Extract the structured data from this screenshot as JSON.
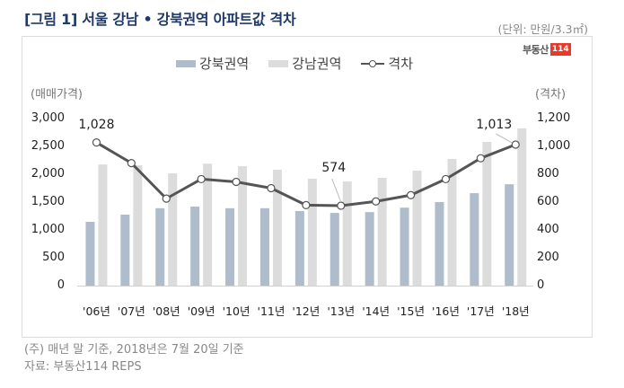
{
  "header": {
    "title": "[그림 1] 서울 강남 • 강북권역 아파트값 격차",
    "unit": "(단위: 만원/3.3㎡)"
  },
  "logo": {
    "text": "부동산",
    "badge": "114",
    "badge_color": "#e8392a"
  },
  "legend": [
    {
      "label": "강북권역",
      "type": "bar",
      "color": "#aebccb"
    },
    {
      "label": "강남권역",
      "type": "bar",
      "color": "#dcdcdc"
    },
    {
      "label": "격차",
      "type": "line-marker",
      "color": "#555555"
    }
  ],
  "axes": {
    "left_title": "(매매가격)",
    "right_title": "(격차)",
    "left_ticks": [
      "3,000",
      "2,500",
      "2,000",
      "1,500",
      "1,000",
      "500",
      "0"
    ],
    "right_ticks": [
      "1,200",
      "1,000",
      "800",
      "600",
      "400",
      "200",
      "0"
    ]
  },
  "annotations": [
    {
      "label": "1,028",
      "index": 0
    },
    {
      "label": "574",
      "index": 7
    },
    {
      "label": "1,013",
      "index": 12
    }
  ],
  "footnotes": {
    "note": "(주) 매년 말 기준, 2018년은 7월 20일 기준",
    "source": "자료: 부동산114 REPS"
  },
  "chart_data": {
    "type": "bar+line",
    "title": "[그림 1] 서울 강남 • 강북권역 아파트값 격차",
    "unit": "만원/3.3㎡",
    "categories": [
      "'06년",
      "'07년",
      "'08년",
      "'09년",
      "'10년",
      "'11년",
      "'12년",
      "'13년",
      "'14년",
      "'15년",
      "'16년",
      "'17년",
      "'18년"
    ],
    "series": [
      {
        "name": "강북권역",
        "type": "bar",
        "axis": "left",
        "color": "#aebccb",
        "values": [
          1145,
          1275,
          1390,
          1420,
          1390,
          1390,
          1340,
          1305,
          1320,
          1400,
          1500,
          1660,
          1820
        ]
      },
      {
        "name": "강남권역",
        "type": "bar",
        "axis": "left",
        "color": "#dcdcdc",
        "values": [
          2175,
          2160,
          2015,
          2190,
          2145,
          2080,
          1920,
          1870,
          1935,
          2065,
          2275,
          2580,
          2825
        ]
      },
      {
        "name": "격차",
        "type": "line",
        "axis": "right",
        "color": "#555555",
        "values": [
          1028,
          880,
          625,
          765,
          745,
          700,
          578,
          574,
          605,
          650,
          765,
          915,
          1013
        ]
      }
    ],
    "ylabel": "(매매가격)",
    "y2label": "(격차)",
    "ylim": [
      0,
      3000
    ],
    "y2lim": [
      0,
      1200
    ],
    "legend_position": "top",
    "grid": false
  }
}
